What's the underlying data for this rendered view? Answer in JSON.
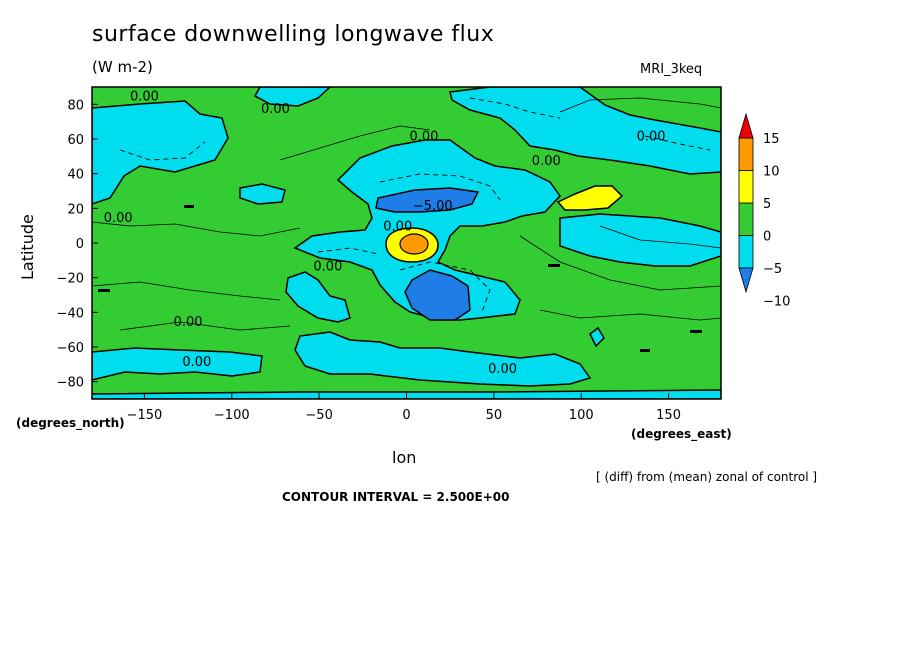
{
  "chart_data": {
    "type": "heatmap",
    "title": "surface downwelling longwave flux",
    "units": "(W m-2)",
    "model": "MRI_3keq",
    "xlabel": "lon",
    "ylabel": "Latitude",
    "x_units": "(degrees_east)",
    "y_units": "(degrees_north)",
    "note": "[ (diff) from (mean) zonal of control ]",
    "contour_interval": "CONTOUR INTERVAL = 2.500E+00",
    "xlim": [
      -180,
      180
    ],
    "ylim": [
      -90,
      90
    ],
    "x_ticks": [
      -150,
      -100,
      -50,
      0,
      50,
      100,
      150
    ],
    "y_ticks": [
      80,
      60,
      40,
      20,
      0,
      -20,
      -40,
      -60,
      -80
    ],
    "colorbar": {
      "levels": [
        -10,
        -5,
        0,
        5,
        10,
        15
      ],
      "colors": [
        "#1e7de6",
        "#00ddee",
        "#33cc33",
        "#ffff00",
        "#ff9900",
        "#ee0000"
      ]
    },
    "contour_labels": [
      {
        "text": "0.00",
        "lon": -150,
        "lat": 85
      },
      {
        "text": "0.00",
        "lon": -75,
        "lat": 78
      },
      {
        "text": "0.00",
        "lon": 10,
        "lat": 62
      },
      {
        "text": "0.00",
        "lon": 140,
        "lat": 62
      },
      {
        "text": "0.00",
        "lon": 80,
        "lat": 48
      },
      {
        "text": "0.00",
        "lon": -165,
        "lat": 15
      },
      {
        "text": "-5.00",
        "lon": 15,
        "lat": 22
      },
      {
        "text": "0.00",
        "lon": -5,
        "lat": 10
      },
      {
        "text": "0.00",
        "lon": -45,
        "lat": -13
      },
      {
        "text": "0.00",
        "lon": -125,
        "lat": -45
      },
      {
        "text": "0.00",
        "lon": -120,
        "lat": -68
      },
      {
        "text": "0.00",
        "lon": 55,
        "lat": -72
      }
    ]
  }
}
